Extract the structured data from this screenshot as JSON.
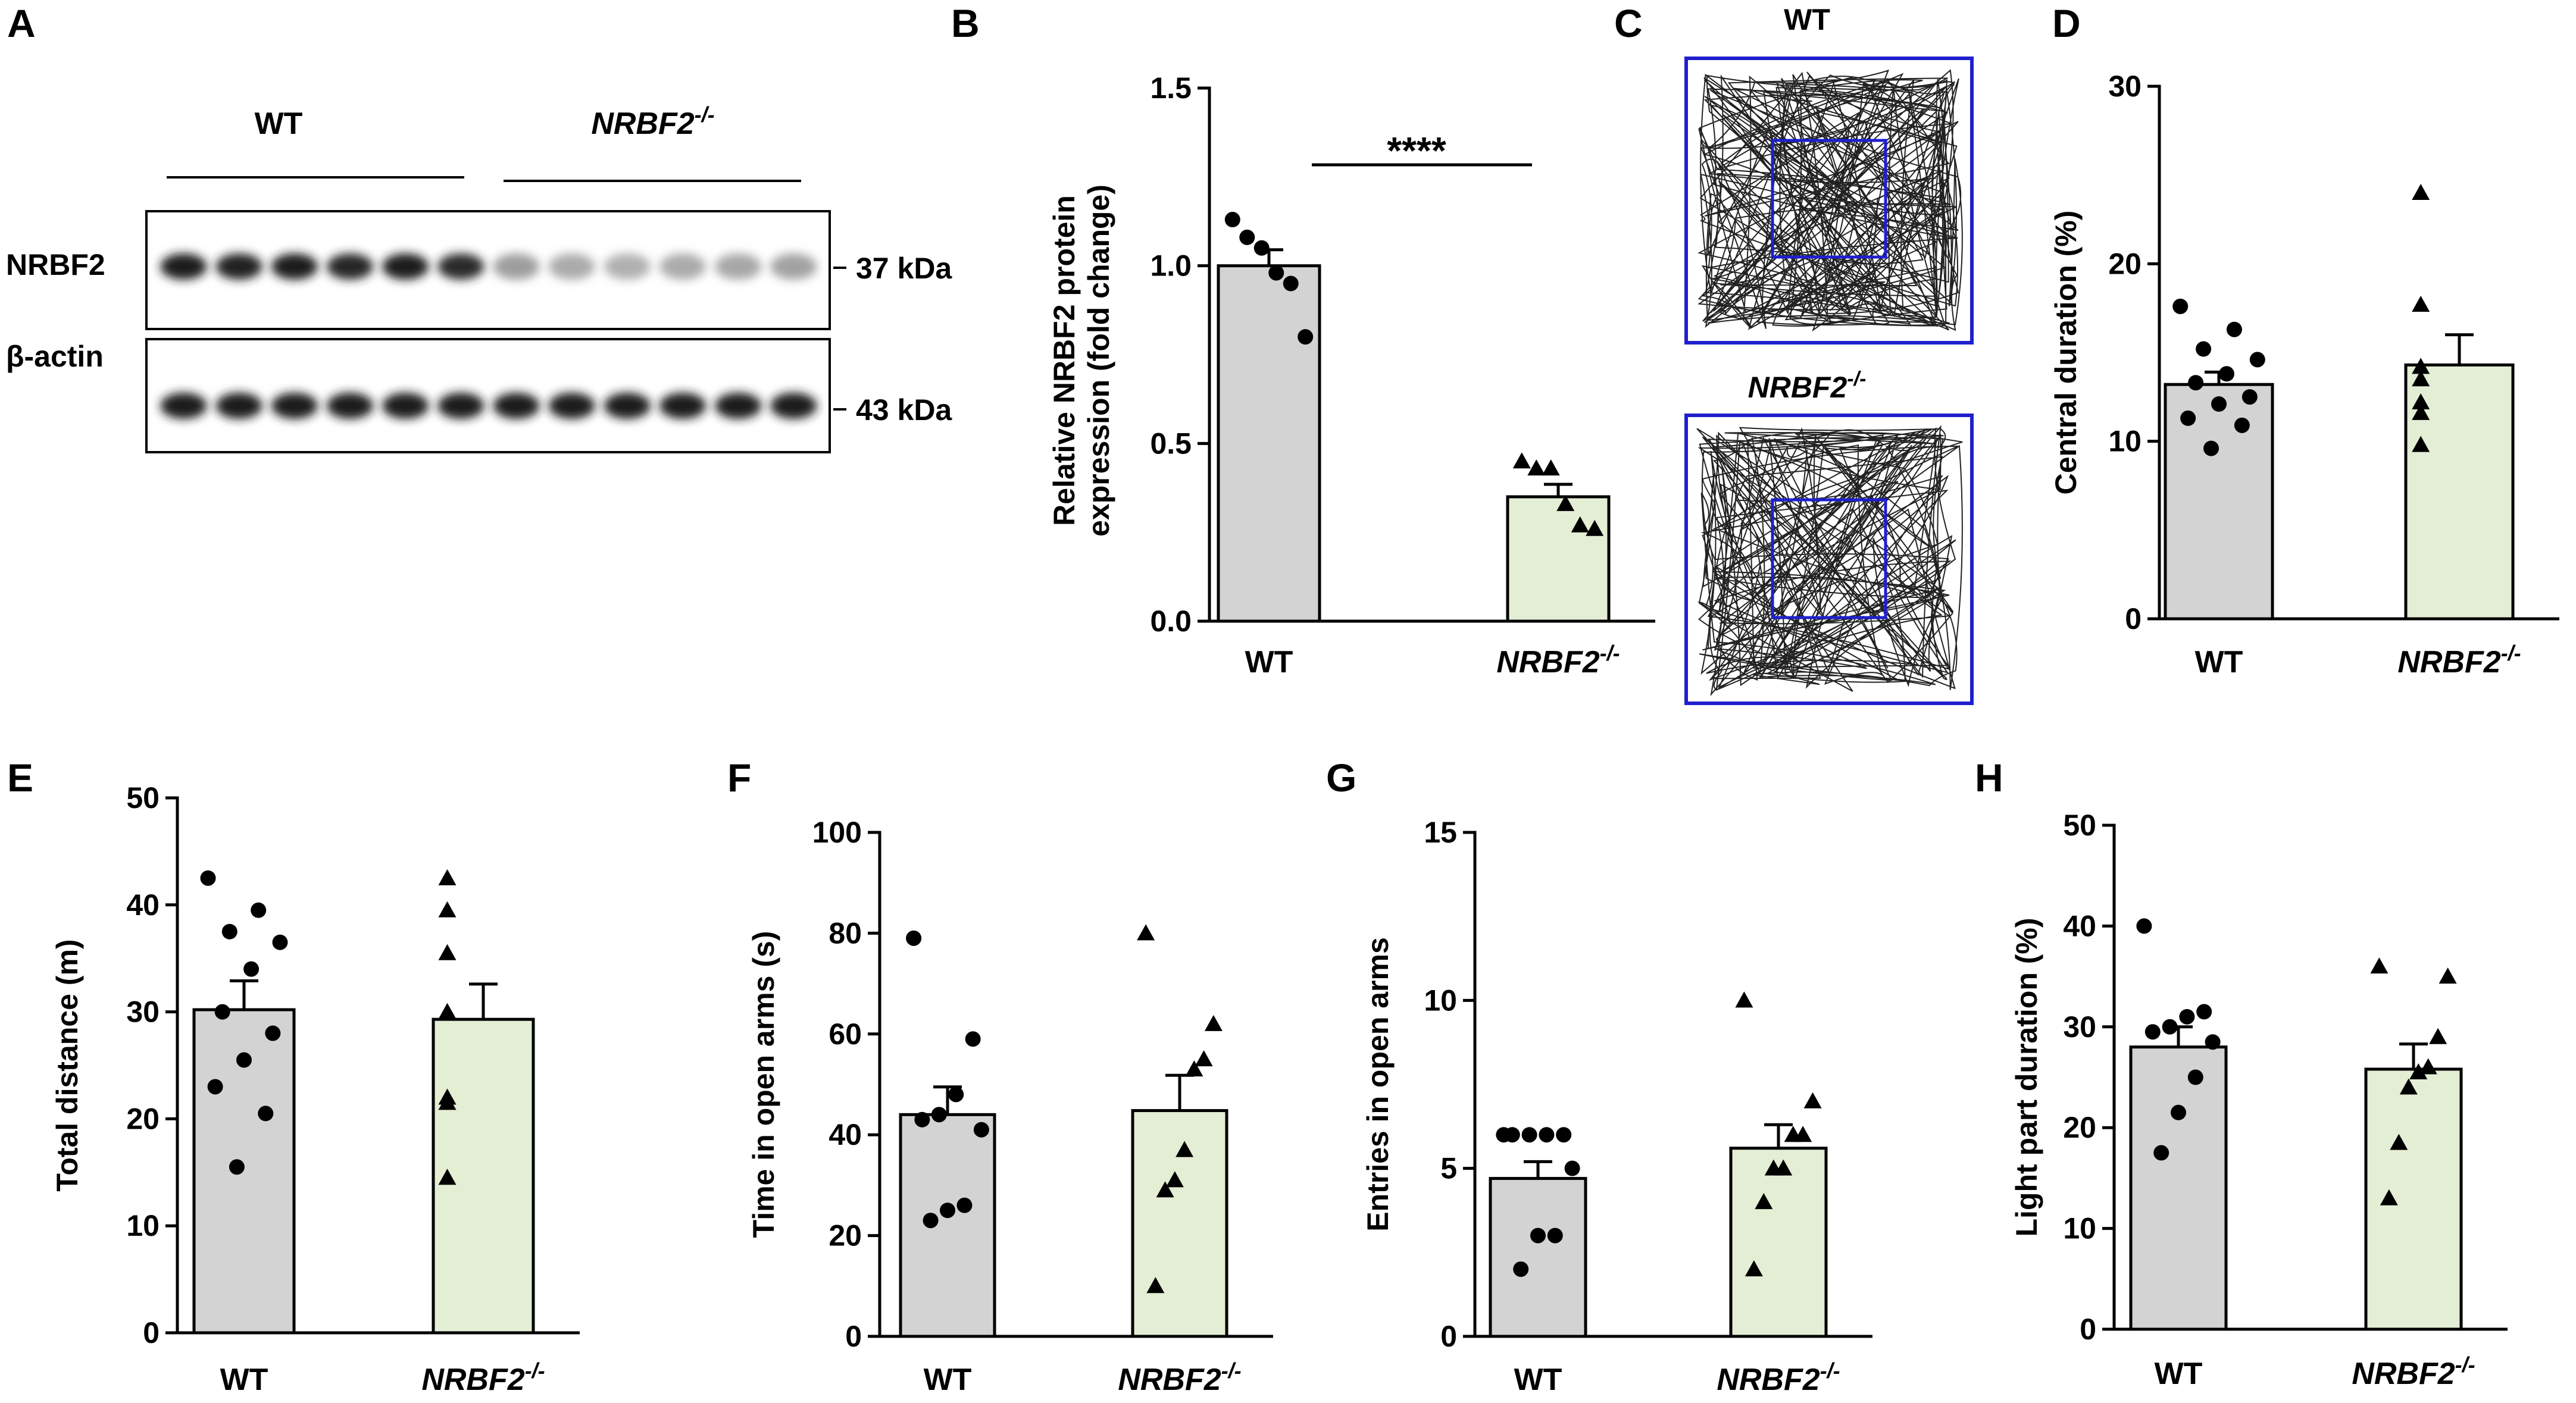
{
  "panel_letters": [
    "A",
    "B",
    "C",
    "D",
    "E",
    "F",
    "G",
    "H"
  ],
  "genotypes": {
    "wt": "WT",
    "ko_base": "NRBF2",
    "ko_sup": "-/-"
  },
  "colors": {
    "wt_bar": "#d3d3d3",
    "ko_bar": "#e3eed5",
    "track_box": "#1f1fcf",
    "track_line": "#222222"
  },
  "western": {
    "row1_label": "NRBF2",
    "row2_label": "β-actin",
    "mw1": "37 kDa",
    "mw2": "43 kDa",
    "lanes": 12,
    "band_intensity_row1": [
      0.95,
      0.92,
      0.93,
      0.9,
      0.95,
      0.88,
      0.38,
      0.32,
      0.3,
      0.32,
      0.34,
      0.36
    ],
    "band_intensity_row2": [
      0.95,
      0.95,
      0.95,
      0.95,
      0.95,
      0.95,
      0.95,
      0.95,
      0.95,
      0.95,
      0.95,
      0.95
    ]
  },
  "open_field_tracks": {
    "top_label": "WT",
    "bottom_label": "NRBF2-/-"
  },
  "chart_data": [
    {
      "panel": "B",
      "type": "bar",
      "ylabel": "Relative NRBF2 protein expression (fold change)",
      "ylim": [
        0,
        1.5
      ],
      "ticks": [
        "0.0",
        "0.5",
        "1.0",
        "1.5"
      ],
      "categories": [
        "WT",
        "NRBF2-/-"
      ],
      "values": [
        1.0,
        0.35
      ],
      "sem": [
        0.045,
        0.035
      ],
      "points": [
        [
          1.13,
          1.08,
          1.05,
          0.98,
          0.95,
          0.8
        ],
        [
          0.45,
          0.43,
          0.43,
          0.33,
          0.27,
          0.26
        ]
      ],
      "significance": "****"
    },
    {
      "panel": "D",
      "type": "bar",
      "ylabel": "Central duration (%)",
      "ylim": [
        0,
        30
      ],
      "ticks": [
        "0",
        "10",
        "20",
        "30"
      ],
      "categories": [
        "WT",
        "NRBF2-/-"
      ],
      "values": [
        13.2,
        14.3
      ],
      "sem": [
        0.7,
        1.7
      ],
      "points": [
        [
          17.6,
          16.3,
          15.2,
          14.6,
          13.8,
          13.3,
          12.5,
          12.1,
          11.3,
          10.9,
          9.6
        ],
        [
          24.0,
          17.7,
          14.2,
          13.5,
          12.2,
          11.6,
          9.8
        ]
      ]
    },
    {
      "panel": "E",
      "type": "bar",
      "ylabel": "Total distance (m)",
      "ylim": [
        0,
        50
      ],
      "ticks": [
        "0",
        "10",
        "20",
        "30",
        "40",
        "50"
      ],
      "categories": [
        "WT",
        "NRBF2-/-"
      ],
      "values": [
        30.2,
        29.3
      ],
      "sem": [
        2.7,
        3.3
      ],
      "points": [
        [
          42.5,
          39.5,
          37.5,
          36.5,
          34.0,
          30.0,
          28.0,
          25.5,
          23.0,
          20.5,
          15.5
        ],
        [
          42.5,
          39.5,
          35.5,
          30.0,
          22.0,
          21.5,
          14.5
        ]
      ]
    },
    {
      "panel": "F",
      "type": "bar",
      "ylabel": "Time in open arms (s)",
      "ylim": [
        0,
        100
      ],
      "ticks": [
        "0",
        "20",
        "40",
        "60",
        "80",
        "100"
      ],
      "categories": [
        "WT",
        "NRBF2-/-"
      ],
      "values": [
        44.0,
        44.8
      ],
      "sem": [
        5.5,
        7.0
      ],
      "points": [
        [
          79.0,
          59.0,
          48.0,
          44.0,
          43.0,
          41.0,
          26.0,
          25.0,
          23.0
        ],
        [
          80.0,
          62.0,
          55.0,
          53.0,
          37.0,
          31.0,
          29.0,
          10.0
        ]
      ]
    },
    {
      "panel": "G",
      "type": "bar",
      "ylabel": "Entries in open arms",
      "ylim": [
        0,
        15
      ],
      "ticks": [
        "0",
        "5",
        "10",
        "15"
      ],
      "categories": [
        "WT",
        "NRBF2-/-"
      ],
      "values": [
        4.7,
        5.6
      ],
      "sem": [
        0.5,
        0.7
      ],
      "points": [
        [
          6,
          6,
          6,
          6,
          6,
          5,
          3,
          3,
          2
        ],
        [
          10,
          7,
          6,
          6,
          5,
          5,
          4,
          2
        ]
      ]
    },
    {
      "panel": "H",
      "type": "bar",
      "ylabel": "Light part duration (%)",
      "ylim": [
        0,
        50
      ],
      "ticks": [
        "0",
        "10",
        "20",
        "30",
        "40",
        "50"
      ],
      "categories": [
        "WT",
        "NRBF2-/-"
      ],
      "values": [
        28.0,
        25.8
      ],
      "sem": [
        2.0,
        2.5
      ],
      "points": [
        [
          40.0,
          31.5,
          31.0,
          30.0,
          29.5,
          28.5,
          25.0,
          21.5,
          17.5
        ],
        [
          36.0,
          35.0,
          29.0,
          26.0,
          25.5,
          24.0,
          18.5,
          13.0
        ]
      ]
    }
  ]
}
